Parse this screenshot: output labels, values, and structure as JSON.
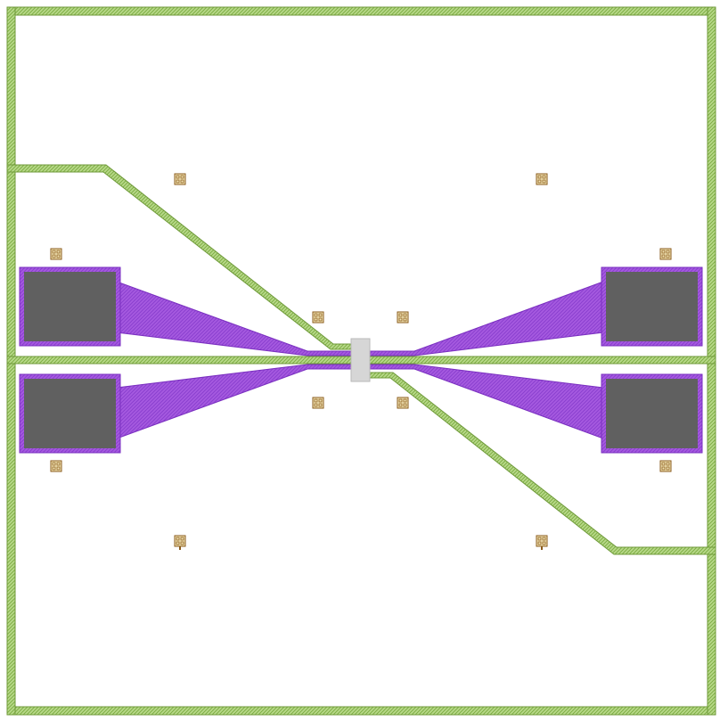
{
  "colors": {
    "background": "#ffffff",
    "metal_green_fill": "#a8cf6f",
    "metal_green_edge": "#6f9a3a",
    "metal_purple_fill": "#9a4bd6",
    "metal_purple_edge": "#7a2fc0",
    "pad_fill": "#606060",
    "device_fill": "#d6d6d6",
    "device_edge": "#b9b9b9",
    "marker_fill": "#f3e6b8",
    "marker_edge": "#8a5a1a"
  },
  "elements": {
    "pads": [
      {
        "id": "pad-top-left"
      },
      {
        "id": "pad-bottom-left"
      },
      {
        "id": "pad-top-right"
      },
      {
        "id": "pad-bottom-right"
      }
    ],
    "tapers": [
      {
        "id": "taper-top-left"
      },
      {
        "id": "taper-bottom-left"
      },
      {
        "id": "taper-top-right"
      },
      {
        "id": "taper-bottom-right"
      }
    ],
    "markers_count": 12
  }
}
